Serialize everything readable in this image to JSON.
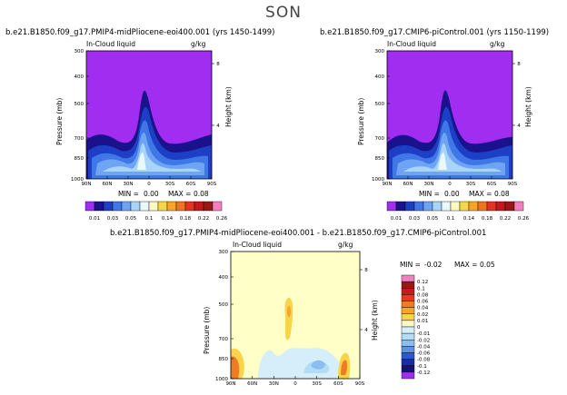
{
  "page": {
    "season": "SON"
  },
  "panels": [
    {
      "id": "pliocene",
      "title": "b.e21.B1850.f09_g17.PMIP4-midPliocene-eoi400.001 (yrs 1450-1499)",
      "subtitle_left": "In-Cloud liquid",
      "subtitle_right": "g/kg",
      "ylabel": "Pressure (mb)",
      "ylabel_right": "Height (km)",
      "stats": {
        "min_label": "MIN =",
        "min": "0.00",
        "max_label": "MAX =",
        "max": "0.08"
      }
    },
    {
      "id": "picontrol",
      "title": "b.e21.B1850.f09_g17.CMIP6-piControl.001 (yrs 1150-1199)",
      "subtitle_left": "In-Cloud liquid",
      "subtitle_right": "g/kg",
      "ylabel": "Pressure (mb)",
      "ylabel_right": "Height (km)",
      "stats": {
        "min_label": "MIN =",
        "min": "0.00",
        "max_label": "MAX =",
        "max": "0.08"
      }
    },
    {
      "id": "difference",
      "title": "b.e21.B1850.f09_g17.PMIP4-midPliocene-eoi400.001  -  b.e21.B1850.f09_g17.CMIP6-piControl.001",
      "subtitle_left": "In-Cloud liquid",
      "subtitle_right": "g/kg",
      "ylabel": "Pressure (mb)",
      "ylabel_right": "Height (km)",
      "stats": {
        "min_label": "MIN =",
        "min": "-0.02",
        "max_label": "MAX =",
        "max": "0.05"
      }
    }
  ],
  "colorbar_abs": {
    "labels": [
      "0.01",
      "0.03",
      "0.05",
      "0.1",
      "0.14",
      "0.18",
      "0.22",
      "0.26"
    ],
    "colors": [
      "#a02df0",
      "#1a128c",
      "#1c3fc6",
      "#3f78e6",
      "#6fa3f4",
      "#a9d4fa",
      "#e8f8fb",
      "#fbf8c2",
      "#f7d64a",
      "#f6a52a",
      "#ee7420",
      "#e2341f",
      "#c4181c",
      "#991717",
      "#f47fc0"
    ]
  },
  "colorbar_diff": {
    "labels": [
      "0.12",
      "0.1",
      "0.08",
      "0.06",
      "0.04",
      "0.02",
      "0.01",
      "0",
      "-0.01",
      "-0.02",
      "-0.04",
      "-0.06",
      "-0.08",
      "-0.1",
      "-0.12"
    ],
    "colors": [
      "#f47fc0",
      "#9a1717",
      "#c8191c",
      "#e43a1f",
      "#f07b22",
      "#f6a62a",
      "#f8d44a",
      "#fbf8c2",
      "#d6eef9",
      "#b3dcf6",
      "#8cbdf0",
      "#5a94e6",
      "#2a5ad0",
      "#1a2ea0",
      "#16126e",
      "#a02df0"
    ]
  },
  "chart_data": [
    {
      "type": "heatmap",
      "title": "b.e21.B1850.f09_g17.PMIP4-midPliocene-eoi400.001 (yrs 1450-1499)",
      "variable": "In-Cloud liquid",
      "units": "g/kg",
      "x_ticks": [
        "90N",
        "60N",
        "30N",
        "0",
        "30S",
        "60S",
        "90S"
      ],
      "y_ticks_left": [
        "300",
        "400",
        "500",
        "700",
        "850",
        "1000"
      ],
      "y_ticks_right": [
        "8",
        "4"
      ],
      "xlabel": "",
      "ylabel": "Pressure (mb)",
      "ylabel_right": "Height (km)",
      "min": 0.0,
      "max": 0.08
    },
    {
      "type": "heatmap",
      "title": "b.e21.B1850.f09_g17.CMIP6-piControl.001 (yrs 1150-1199)",
      "variable": "In-Cloud liquid",
      "units": "g/kg",
      "x_ticks": [
        "90N",
        "60N",
        "30N",
        "0",
        "30S",
        "60S",
        "90S"
      ],
      "y_ticks_left": [
        "300",
        "400",
        "500",
        "700",
        "850",
        "1000"
      ],
      "y_ticks_right": [
        "8",
        "4"
      ],
      "xlabel": "",
      "ylabel": "Pressure (mb)",
      "ylabel_right": "Height (km)",
      "min": 0.0,
      "max": 0.08
    },
    {
      "type": "heatmap",
      "title": "b.e21.B1850.f09_g17.PMIP4-midPliocene-eoi400.001  -  b.e21.B1850.f09_g17.CMIP6-piControl.001",
      "variable": "In-Cloud liquid",
      "units": "g/kg",
      "x_ticks": [
        "90N",
        "60N",
        "30N",
        "0",
        "30S",
        "60S",
        "90S"
      ],
      "y_ticks_left": [
        "300",
        "400",
        "500",
        "700",
        "850",
        "1000"
      ],
      "y_ticks_right": [
        "8",
        "4"
      ],
      "xlabel": "",
      "ylabel": "Pressure (mb)",
      "ylabel_right": "Height (km)",
      "min": -0.02,
      "max": 0.05
    }
  ]
}
